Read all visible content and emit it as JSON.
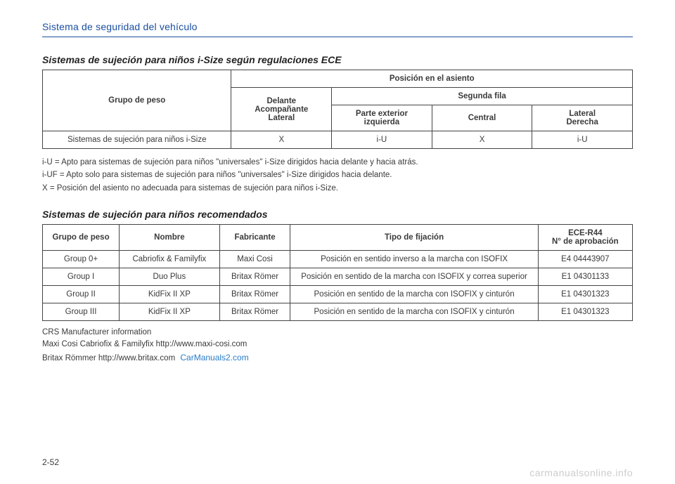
{
  "header": {
    "section_title": "Sistema de seguridad del vehículo"
  },
  "table1": {
    "title": "Sistemas de sujeción para niños i-Size según regulaciones ECE",
    "headers": {
      "col_group": "Grupo de peso",
      "pos_main": "Posición en el asiento",
      "front": "Delante\nAcompañante\nLateral",
      "second_row": "Segunda fila",
      "outer_left": "Parte exterior\nizquierda",
      "center": "Central",
      "outer_right": "Lateral\nDerecha"
    },
    "row": {
      "label": "Sistemas de sujeción para niños i-Size",
      "v1": "X",
      "v2": "i-U",
      "v3": "X",
      "v4": "i-U"
    },
    "legend": {
      "l1": "i-U = Apto para sistemas de sujeción para niños \"universales\" i-Size dirigidos hacia delante y hacia atrás.",
      "l2": "i-UF = Apto solo para sistemas de sujeción para niños \"universales\" i-Size dirigidos hacia delante.",
      "l3": "X = Posición del asiento no adecuada para sistemas de sujeción para niños i-Size."
    },
    "col_widths": {
      "c1": "32%",
      "c2": "17%",
      "c3": "17%",
      "c4": "17%",
      "c5": "17%"
    }
  },
  "table2": {
    "title": "Sistemas de sujeción para niños recomendados",
    "headers": {
      "c1": "Grupo de peso",
      "c2": "Nombre",
      "c3": "Fabricante",
      "c4": "Tipo de fijación",
      "c5": "ECE-R44\nN° de aprobación"
    },
    "rows": [
      {
        "c1": "Group 0+",
        "c2": "Cabriofix & Familyfix",
        "c3": "Maxi Cosi",
        "c4": "Posición en sentido inverso a la marcha con ISOFIX",
        "c5": "E4 04443907"
      },
      {
        "c1": "Group I",
        "c2": "Duo Plus",
        "c3": "Britax Römer",
        "c4": "Posición en sentido de la marcha con ISOFIX y correa superior",
        "c5": "E1 04301133"
      },
      {
        "c1": "Group II",
        "c2": "KidFix II XP",
        "c3": "Britax Römer",
        "c4": "Posición en sentido de la marcha con ISOFIX y cinturón",
        "c5": "E1 04301323"
      },
      {
        "c1": "Group III",
        "c2": "KidFix II XP",
        "c3": "Britax Römer",
        "c4": "Posición en sentido de la marcha con ISOFIX y cinturón",
        "c5": "E1 04301323"
      }
    ],
    "col_widths": {
      "c1": "13%",
      "c2": "17%",
      "c3": "12%",
      "c4": "42%",
      "c5": "16%"
    }
  },
  "footer": {
    "n1": "CRS Manufacturer information",
    "n2": "Maxi Cosi Cabriofix & Familyfix   http://www.maxi-cosi.com",
    "n3": "Britax Römmer   http://www.britax.com",
    "watermark_inline": "CarManuals2.com",
    "page_num": "2-52",
    "bottom_watermark": "carmanualsonline.info"
  }
}
